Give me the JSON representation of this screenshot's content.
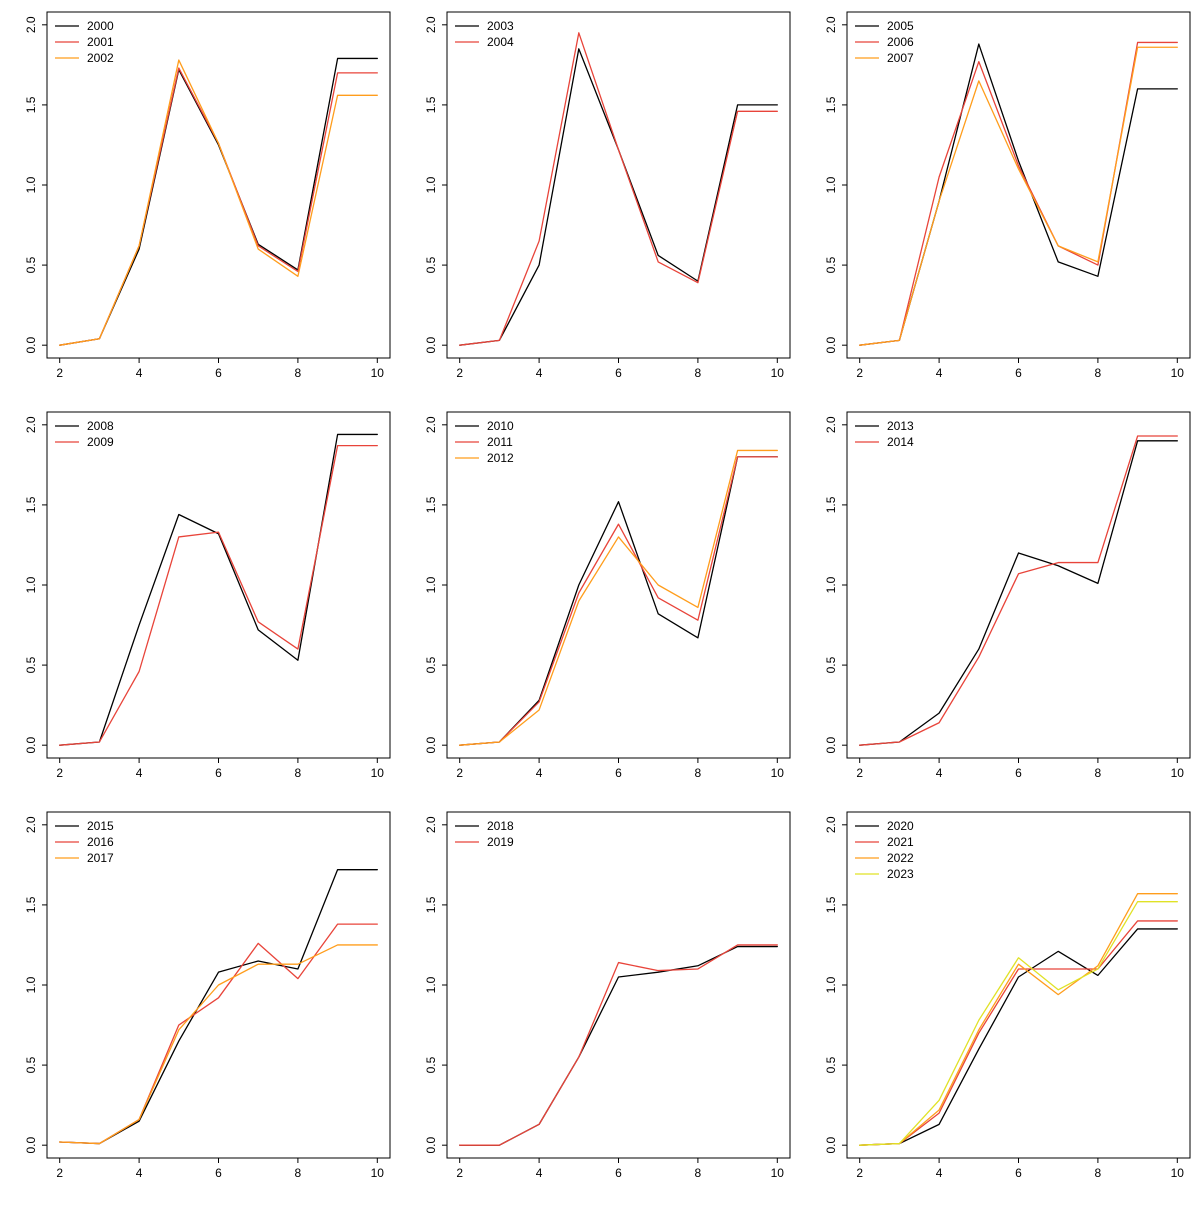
{
  "page": {
    "background": "#ffffff",
    "grid": {
      "rows": 3,
      "cols": 3
    }
  },
  "palette": {
    "black": "#000000",
    "red": "#e8443a",
    "orange": "#ff9d1c",
    "yellow": "#e0e226"
  },
  "axes_defaults": {
    "xlim": [
      2,
      10
    ],
    "ylim": [
      0,
      2
    ],
    "xticks": [
      2,
      4,
      6,
      8,
      10
    ],
    "xtick_labels": [
      "2",
      "4",
      "6",
      "8",
      "10"
    ],
    "yticks": [
      0,
      0.5,
      1,
      1.5,
      2
    ],
    "ytick_labels": [
      "0.0",
      "0.5",
      "1.0",
      "1.5",
      "2.0"
    ],
    "grid_lines": false,
    "legend_position": "topleft"
  },
  "chart_data": [
    {
      "type": "line",
      "x": [
        2,
        3,
        4,
        5,
        6,
        7,
        8,
        9,
        10
      ],
      "series": [
        {
          "name": "2000",
          "color": "#000000",
          "values": [
            0.0,
            0.04,
            0.6,
            1.72,
            1.25,
            0.63,
            0.47,
            1.79,
            1.79
          ]
        },
        {
          "name": "2001",
          "color": "#e8443a",
          "values": [
            0.0,
            0.04,
            0.62,
            1.73,
            1.26,
            0.62,
            0.46,
            1.7,
            1.7
          ]
        },
        {
          "name": "2002",
          "color": "#ff9d1c",
          "values": [
            0.0,
            0.04,
            0.62,
            1.78,
            1.26,
            0.6,
            0.43,
            1.56,
            1.56
          ]
        }
      ]
    },
    {
      "type": "line",
      "x": [
        2,
        3,
        4,
        5,
        6,
        7,
        8,
        9,
        10
      ],
      "series": [
        {
          "name": "2003",
          "color": "#000000",
          "values": [
            0.0,
            0.03,
            0.5,
            1.85,
            1.22,
            0.56,
            0.4,
            1.5,
            1.5
          ]
        },
        {
          "name": "2004",
          "color": "#e8443a",
          "values": [
            0.0,
            0.03,
            0.65,
            1.95,
            1.22,
            0.52,
            0.39,
            1.46,
            1.46
          ]
        }
      ]
    },
    {
      "type": "line",
      "x": [
        2,
        3,
        4,
        5,
        6,
        7,
        8,
        9,
        10
      ],
      "series": [
        {
          "name": "2005",
          "color": "#000000",
          "values": [
            0.0,
            0.03,
            0.9,
            1.88,
            1.15,
            0.52,
            0.43,
            1.6,
            1.6
          ]
        },
        {
          "name": "2006",
          "color": "#e8443a",
          "values": [
            0.0,
            0.03,
            1.05,
            1.77,
            1.12,
            0.62,
            0.5,
            1.89,
            1.89
          ]
        },
        {
          "name": "2007",
          "color": "#ff9d1c",
          "values": [
            0.0,
            0.03,
            0.9,
            1.65,
            1.1,
            0.62,
            0.52,
            1.86,
            1.86
          ]
        }
      ]
    },
    {
      "type": "line",
      "x": [
        2,
        3,
        4,
        5,
        6,
        7,
        8,
        9,
        10
      ],
      "series": [
        {
          "name": "2008",
          "color": "#000000",
          "values": [
            0.0,
            0.02,
            0.75,
            1.44,
            1.32,
            0.72,
            0.53,
            1.94,
            1.94
          ]
        },
        {
          "name": "2009",
          "color": "#e8443a",
          "values": [
            0.0,
            0.02,
            0.46,
            1.3,
            1.33,
            0.77,
            0.6,
            1.87,
            1.87
          ]
        }
      ]
    },
    {
      "type": "line",
      "x": [
        2,
        3,
        4,
        5,
        6,
        7,
        8,
        9,
        10
      ],
      "series": [
        {
          "name": "2010",
          "color": "#000000",
          "values": [
            0.0,
            0.02,
            0.28,
            1.0,
            1.52,
            0.82,
            0.67,
            1.8,
            1.8
          ]
        },
        {
          "name": "2011",
          "color": "#e8443a",
          "values": [
            0.0,
            0.02,
            0.27,
            0.95,
            1.38,
            0.92,
            0.78,
            1.8,
            1.8
          ]
        },
        {
          "name": "2012",
          "color": "#ff9d1c",
          "values": [
            0.0,
            0.02,
            0.22,
            0.9,
            1.3,
            1.0,
            0.86,
            1.84,
            1.84
          ]
        }
      ]
    },
    {
      "type": "line",
      "x": [
        2,
        3,
        4,
        5,
        6,
        7,
        8,
        9,
        10
      ],
      "series": [
        {
          "name": "2013",
          "color": "#000000",
          "values": [
            0.0,
            0.02,
            0.2,
            0.6,
            1.2,
            1.12,
            1.01,
            1.9,
            1.9
          ]
        },
        {
          "name": "2014",
          "color": "#e8443a",
          "values": [
            0.0,
            0.02,
            0.14,
            0.55,
            1.07,
            1.14,
            1.14,
            1.93,
            1.93
          ]
        }
      ]
    },
    {
      "type": "line",
      "x": [
        2,
        3,
        4,
        5,
        6,
        7,
        8,
        9,
        10
      ],
      "series": [
        {
          "name": "2015",
          "color": "#000000",
          "values": [
            0.02,
            0.01,
            0.15,
            0.65,
            1.08,
            1.15,
            1.1,
            1.72,
            1.72
          ]
        },
        {
          "name": "2016",
          "color": "#e8443a",
          "values": [
            0.02,
            0.01,
            0.16,
            0.75,
            0.92,
            1.26,
            1.04,
            1.38,
            1.38
          ]
        },
        {
          "name": "2017",
          "color": "#ff9d1c",
          "values": [
            0.02,
            0.01,
            0.16,
            0.72,
            1.0,
            1.13,
            1.13,
            1.25,
            1.25
          ]
        }
      ]
    },
    {
      "type": "line",
      "x": [
        2,
        3,
        4,
        5,
        6,
        7,
        8,
        9,
        10
      ],
      "series": [
        {
          "name": "2018",
          "color": "#000000",
          "values": [
            0.0,
            0.0,
            0.13,
            0.55,
            1.05,
            1.08,
            1.12,
            1.24,
            1.24
          ]
        },
        {
          "name": "2019",
          "color": "#e8443a",
          "values": [
            0.0,
            0.0,
            0.13,
            0.55,
            1.14,
            1.09,
            1.1,
            1.25,
            1.25
          ]
        }
      ]
    },
    {
      "type": "line",
      "x": [
        2,
        3,
        4,
        5,
        6,
        7,
        8,
        9,
        10
      ],
      "series": [
        {
          "name": "2020",
          "color": "#000000",
          "values": [
            0.0,
            0.01,
            0.13,
            0.6,
            1.05,
            1.21,
            1.06,
            1.35,
            1.35
          ]
        },
        {
          "name": "2021",
          "color": "#e8443a",
          "values": [
            0.0,
            0.01,
            0.2,
            0.7,
            1.1,
            1.1,
            1.1,
            1.4,
            1.4
          ]
        },
        {
          "name": "2022",
          "color": "#ff9d1c",
          "values": [
            0.0,
            0.01,
            0.22,
            0.72,
            1.13,
            0.94,
            1.12,
            1.57,
            1.57
          ]
        },
        {
          "name": "2023",
          "color": "#e0e226",
          "values": [
            0.0,
            0.01,
            0.28,
            0.78,
            1.17,
            0.97,
            1.1,
            1.52,
            1.52
          ]
        }
      ]
    }
  ]
}
